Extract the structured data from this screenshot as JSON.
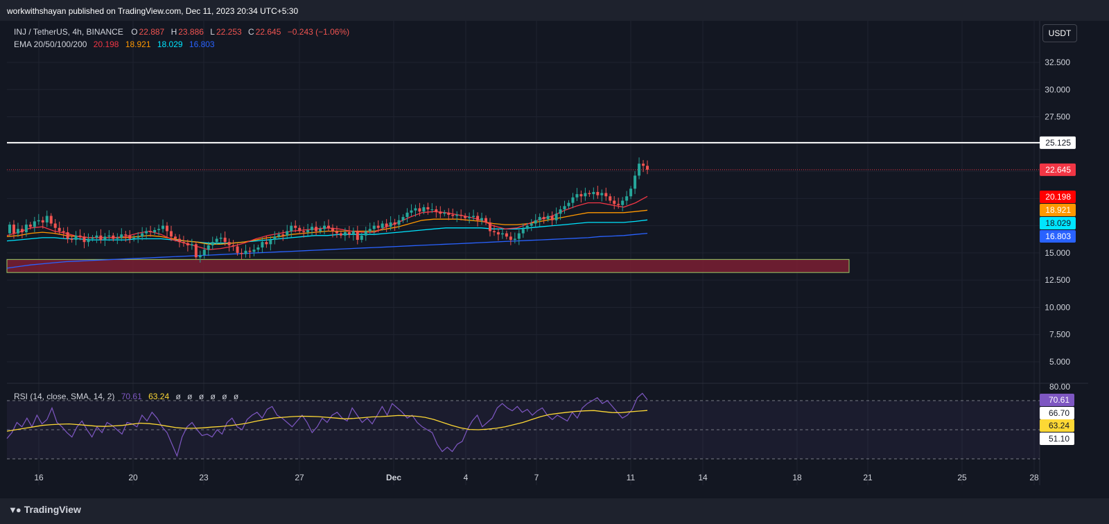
{
  "header": {
    "published": "workwithshayan published on TradingView.com, Dec 11, 2023 20:34 UTC+5:30"
  },
  "legend": {
    "symbol": "INJ / TetherUS, 4h, BINANCE",
    "o_label": "O",
    "o": "22.887",
    "h_label": "H",
    "h": "23.886",
    "l_label": "L",
    "l": "22.253",
    "c_label": "C",
    "c": "22.645",
    "change": "−0.243 (−1.06%)",
    "ema_label": "EMA 20/50/100/200",
    "ema20": "20.198",
    "ema50": "18.921",
    "ema100": "18.029",
    "ema200": "16.803",
    "rsi_label": "RSI (14, close, SMA, 14, 2)",
    "rsi": "70.61",
    "rsi_sma": "63.24",
    "rsi_extras": [
      "ø",
      "ø",
      "ø",
      "ø",
      "ø",
      "ø"
    ]
  },
  "unit_button": "USDT",
  "footer": {
    "brand": "TradingView"
  },
  "colors": {
    "up": "#26a69a",
    "down": "#ef5350",
    "ema20": "#f23645",
    "ema50": "#ff9800",
    "ema100": "#00e5ff",
    "ema200": "#2962ff",
    "rsi": "#7e57c2",
    "rsi_sma": "#fdd835",
    "zone": "#7b1f33",
    "zone_border": "#9ccc65"
  },
  "chart_data": {
    "type": "candlestick",
    "interval": "4h",
    "x_axis_ticks": [
      "16",
      "20",
      "23",
      "27",
      "Dec",
      "4",
      "7",
      "11",
      "14",
      "18",
      "21",
      "25",
      "28"
    ],
    "y_axis": {
      "ticks": [
        "5.000",
        "7.500",
        "10.000",
        "12.500",
        "15.000",
        "27.500",
        "30.000",
        "32.500"
      ],
      "range": [
        3.2,
        35.0
      ]
    },
    "price_labels": [
      {
        "name": "horizontal line",
        "value": "25.125"
      },
      {
        "name": "last price",
        "value": "22.645"
      },
      {
        "name": "EMA 20",
        "value": "20.198"
      },
      {
        "name": "EMA 50",
        "value": "18.921"
      },
      {
        "name": "EMA 100",
        "value": "18.029"
      },
      {
        "name": "EMA 200",
        "value": "16.803"
      }
    ],
    "horizontal_line": 25.125,
    "zone": {
      "from": 13.2,
      "to": 14.4
    },
    "closes": [
      17.6,
      16.8,
      17.2,
      16.9,
      17.6,
      17.4,
      17.9,
      18.0,
      17.8,
      18.4,
      17.7,
      17.3,
      17.0,
      16.9,
      16.3,
      16.2,
      16.6,
      16.5,
      16.0,
      16.3,
      16.4,
      16.6,
      16.2,
      16.5,
      16.6,
      16.3,
      16.4,
      16.7,
      16.6,
      16.3,
      16.4,
      16.5,
      16.8,
      17.0,
      16.9,
      17.1,
      17.2,
      17.5,
      17.0,
      16.5,
      16.3,
      16.0,
      15.9,
      15.7,
      15.8,
      14.6,
      14.8,
      15.3,
      15.7,
      16.0,
      16.3,
      16.4,
      16.0,
      15.7,
      15.6,
      15.0,
      14.9,
      15.2,
      15.1,
      15.3,
      15.5,
      16.0,
      15.8,
      16.2,
      16.5,
      16.7,
      16.6,
      17.0,
      17.5,
      17.3,
      17.0,
      16.9,
      17.1,
      17.4,
      17.0,
      17.2,
      17.5,
      17.3,
      17.0,
      16.8,
      16.6,
      16.9,
      16.7,
      17.0,
      16.2,
      16.6,
      17.0,
      17.2,
      17.5,
      17.3,
      17.7,
      17.4,
      17.8,
      17.6,
      18.0,
      18.3,
      18.7,
      18.9,
      19.1,
      18.8,
      19.2,
      19.0,
      19.0,
      18.8,
      18.6,
      18.7,
      18.5,
      18.4,
      18.5,
      18.4,
      18.2,
      18.3,
      18.4,
      18.0,
      18.2,
      17.8,
      17.0,
      16.9,
      16.7,
      16.8,
      16.5,
      16.2,
      16.3,
      16.8,
      17.2,
      17.5,
      17.7,
      18.0,
      18.3,
      18.1,
      18.4,
      18.0,
      18.6,
      19.0,
      19.3,
      19.6,
      20.1,
      20.4,
      20.2,
      20.5,
      20.4,
      20.6,
      20.3,
      20.5,
      20.2,
      19.8,
      19.5,
      19.4,
      19.8,
      20.2,
      20.9,
      22.1,
      23.2,
      23.0,
      22.645
    ],
    "ema20": [
      16.6,
      16.9,
      17.3,
      17.4,
      17.0,
      16.8,
      16.5,
      16.4,
      16.4,
      16.4,
      16.5,
      16.8,
      17.0,
      16.7,
      16.2,
      15.9,
      15.6,
      15.3,
      15.4,
      15.6,
      15.9,
      16.3,
      16.6,
      16.8,
      17.0,
      17.1,
      17.2,
      17.3,
      17.2,
      17.0,
      16.9,
      16.9,
      17.4,
      17.8,
      18.3,
      18.7,
      18.8,
      18.7,
      18.5,
      18.3,
      18.0,
      17.5,
      17.2,
      17.3,
      17.7,
      18.1,
      18.4,
      18.9,
      19.3,
      19.6,
      19.6,
      19.4,
      19.2,
      19.6,
      20.198
    ],
    "ema50": [
      16.5,
      16.6,
      16.8,
      16.9,
      16.8,
      16.6,
      16.5,
      16.4,
      16.4,
      16.4,
      16.4,
      16.5,
      16.6,
      16.5,
      16.3,
      16.1,
      16.0,
      15.8,
      15.8,
      15.9,
      16.0,
      16.2,
      16.4,
      16.5,
      16.7,
      16.8,
      16.9,
      17.0,
      17.0,
      17.0,
      17.0,
      17.0,
      17.2,
      17.4,
      17.7,
      18.0,
      18.1,
      18.1,
      18.1,
      18.0,
      17.9,
      17.7,
      17.6,
      17.6,
      17.7,
      17.9,
      18.1,
      18.3,
      18.5,
      18.7,
      18.7,
      18.7,
      18.7,
      18.8,
      18.921
    ],
    "ema100": [
      16.1,
      16.2,
      16.3,
      16.4,
      16.4,
      16.3,
      16.3,
      16.2,
      16.2,
      16.2,
      16.2,
      16.3,
      16.3,
      16.3,
      16.2,
      16.1,
      16.0,
      15.9,
      15.9,
      15.9,
      16.0,
      16.1,
      16.2,
      16.3,
      16.4,
      16.5,
      16.6,
      16.6,
      16.7,
      16.7,
      16.7,
      16.7,
      16.8,
      16.9,
      17.0,
      17.1,
      17.2,
      17.3,
      17.3,
      17.3,
      17.3,
      17.2,
      17.2,
      17.2,
      17.3,
      17.4,
      17.5,
      17.6,
      17.7,
      17.8,
      17.8,
      17.8,
      17.8,
      17.9,
      18.029
    ],
    "ema200": [
      13.6,
      13.75,
      13.9,
      14.0,
      14.1,
      14.2,
      14.25,
      14.3,
      14.35,
      14.4,
      14.45,
      14.5,
      14.55,
      14.6,
      14.65,
      14.7,
      14.75,
      14.8,
      14.85,
      14.9,
      14.95,
      15.0,
      15.05,
      15.1,
      15.15,
      15.2,
      15.25,
      15.3,
      15.35,
      15.4,
      15.45,
      15.5,
      15.55,
      15.6,
      15.65,
      15.7,
      15.75,
      15.8,
      15.85,
      15.9,
      15.95,
      16.0,
      16.05,
      16.1,
      16.15,
      16.2,
      16.25,
      16.3,
      16.35,
      16.4,
      16.5,
      16.55,
      16.6,
      16.7,
      16.803
    ],
    "rsi": {
      "ticks": [
        "80.00"
      ],
      "price_labels": [
        "70.61",
        "66.70",
        "63.24",
        "51.10"
      ],
      "bands": [
        30,
        50,
        70
      ],
      "values": [
        44,
        48,
        55,
        52,
        58,
        52,
        60,
        54,
        57,
        65,
        55,
        52,
        48,
        45,
        52,
        56,
        50,
        45,
        52,
        48,
        55,
        53,
        50,
        47,
        55,
        54,
        52,
        60,
        56,
        62,
        58,
        52,
        48,
        40,
        32,
        45,
        52,
        55,
        50,
        46,
        47,
        45,
        50,
        47,
        55,
        58,
        52,
        50,
        57,
        60,
        62,
        58,
        64,
        66,
        60,
        58,
        55,
        52,
        56,
        60,
        55,
        48,
        52,
        58,
        55,
        60,
        62,
        58,
        56,
        65,
        60,
        55,
        58,
        54,
        60,
        66,
        60,
        68,
        65,
        62,
        58,
        60,
        55,
        52,
        50,
        48,
        40,
        35,
        38,
        35,
        40,
        42,
        50,
        56,
        60,
        52,
        55,
        58,
        65,
        68,
        65,
        63,
        66,
        62,
        64,
        60,
        63,
        65,
        60,
        57,
        60,
        58,
        56,
        62,
        58,
        65,
        68,
        70,
        72,
        68,
        70,
        66,
        62,
        58,
        60,
        64,
        72,
        75,
        70.61
      ],
      "sma": [
        49,
        50,
        51,
        52,
        53,
        53.5,
        53.8,
        54,
        53.5,
        53,
        52.5,
        52.3,
        52.6,
        53,
        53.8,
        54.5,
        54.2,
        53.5,
        52.5,
        51.5,
        51,
        51,
        51.3,
        51.8,
        52.2,
        52.8,
        53.5,
        54.5,
        55.8,
        57,
        58,
        58.5,
        59,
        59.3,
        59.2,
        59,
        58.5,
        58,
        57.5,
        57.8,
        58.3,
        58.8,
        59,
        59.4,
        59.8,
        59.6,
        59.3,
        58.5,
        57,
        55,
        53,
        51.3,
        50.2,
        50,
        50.4,
        51,
        52,
        53.5,
        55,
        57,
        59,
        60.5,
        61.3,
        62,
        62.6,
        63,
        63.2,
        62.5,
        61.8,
        61.7,
        62.3,
        62.8,
        63.24
      ]
    }
  }
}
